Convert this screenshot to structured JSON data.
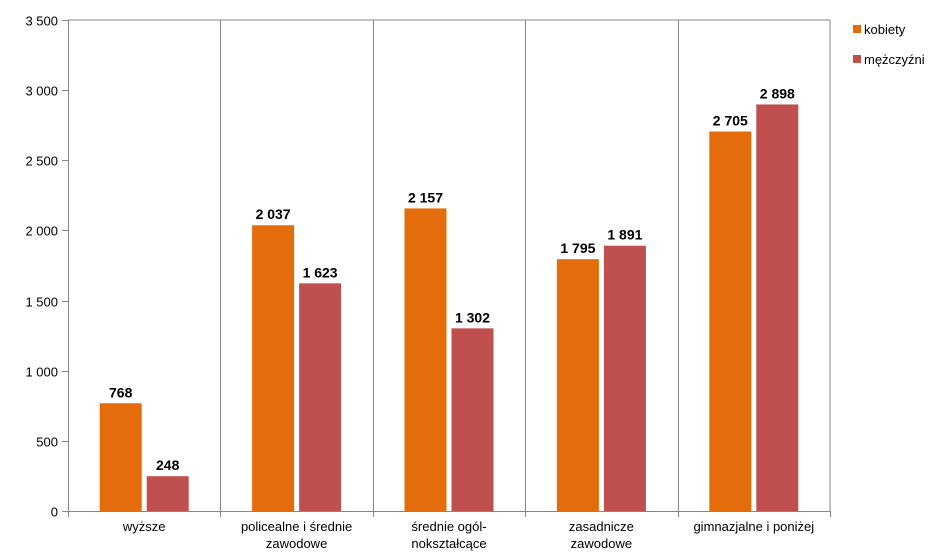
{
  "chart_data": {
    "type": "bar",
    "categories": [
      [
        "wyższe"
      ],
      [
        "policealne i średnie",
        "zawodowe"
      ],
      [
        "średnie ogól-",
        "nokształcące"
      ],
      [
        "zasadnicze",
        "zawodowe"
      ],
      [
        "gimnazjalne i poniżej"
      ]
    ],
    "series": [
      {
        "name": "kobiety",
        "color": "#E46C0A",
        "values": [
          768,
          2037,
          2157,
          1795,
          2705
        ],
        "labels": [
          "768",
          "2 037",
          "2 157",
          "1 795",
          "2 705"
        ]
      },
      {
        "name": "mężczyźni",
        "color": "#C0504D",
        "values": [
          248,
          1623,
          1302,
          1891,
          2898
        ],
        "labels": [
          "248",
          "1 623",
          "1 302",
          "1 891",
          "2 898"
        ]
      }
    ],
    "ylim": [
      0,
      3500
    ],
    "yticks": [
      0,
      500,
      1000,
      1500,
      2000,
      2500,
      3000,
      3500
    ],
    "ytick_labels": [
      "0",
      "500",
      "1 000",
      "1 500",
      "2 000",
      "2 500",
      "3 000",
      "3 500"
    ],
    "grid": "vertical-category",
    "legend_position": "top-right"
  }
}
